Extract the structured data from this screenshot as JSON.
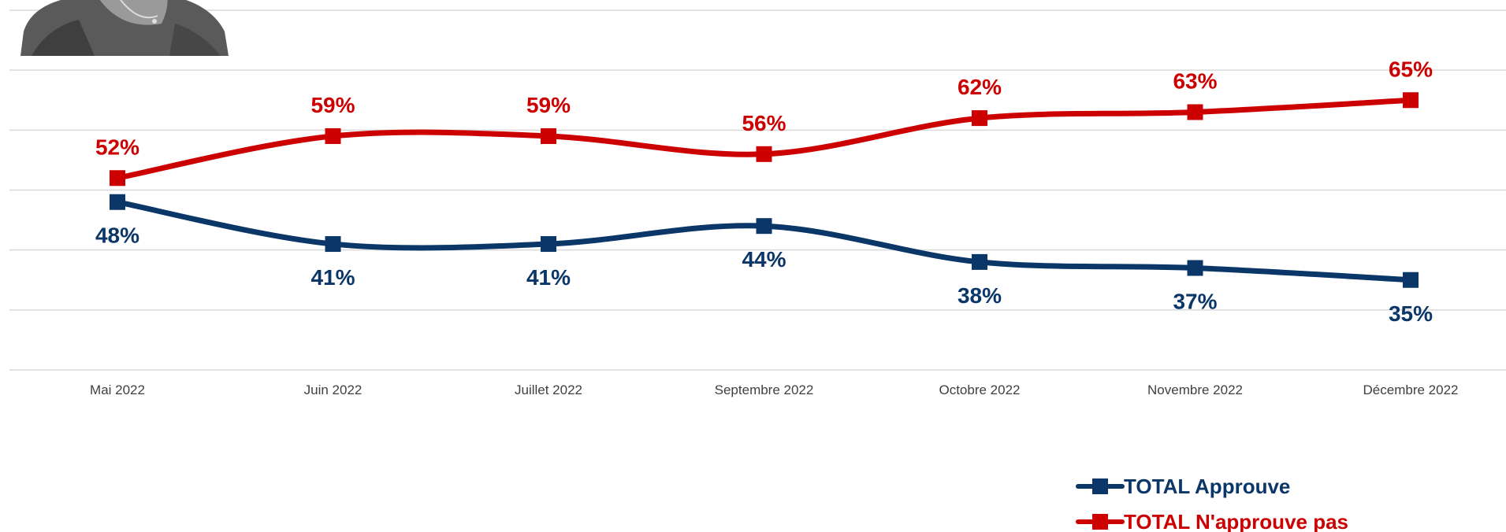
{
  "chart_data": {
    "type": "line",
    "categories": [
      "Mai 2022",
      "Juin 2022",
      "Juillet 2022",
      "Septembre 2022",
      "Octobre 2022",
      "Novembre 2022",
      "Décembre 2022"
    ],
    "series": [
      {
        "name": "TOTAL Approuve",
        "values": [
          48,
          41,
          41,
          44,
          38,
          37,
          35
        ],
        "labels": [
          "48%",
          "41%",
          "41%",
          "44%",
          "38%",
          "37%",
          "35%"
        ],
        "color": "#0a3668"
      },
      {
        "name": "TOTAL N'approuve pas",
        "values": [
          52,
          59,
          59,
          56,
          62,
          63,
          65
        ],
        "labels": [
          "52%",
          "59%",
          "59%",
          "56%",
          "62%",
          "63%",
          "65%"
        ],
        "color": "#cc0000"
      }
    ],
    "ylim": [
      20,
      80
    ],
    "grid": true,
    "legend": "bottom-right",
    "line_style": "smooth",
    "marker": "square"
  },
  "photo": {
    "icon": "portrait-photo",
    "style": "grayscale"
  }
}
